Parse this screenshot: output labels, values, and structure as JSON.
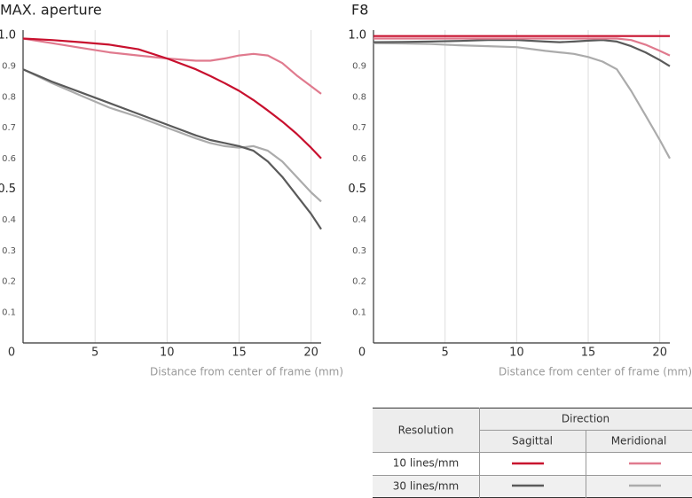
{
  "chart_data": [
    {
      "type": "line",
      "title": "MAX. aperture",
      "x_label": "Distance from center of frame (mm)",
      "x": [
        0,
        2,
        4,
        6,
        8,
        10,
        12,
        13,
        14,
        15,
        16,
        17,
        18,
        19,
        20,
        20.7
      ],
      "xlim": [
        0,
        20.7
      ],
      "xticks": [
        0,
        5,
        10,
        15,
        20
      ],
      "ylim": [
        0,
        1
      ],
      "yticks": [
        {
          "value": 1,
          "label": "1.0"
        },
        0.9,
        0.8,
        0.7,
        0.6,
        0.5,
        0.4,
        0.3,
        0.2,
        0.1
      ],
      "grid": true,
      "series": [
        {
          "color": "#c8102e",
          "values": [
            0.99,
            0.985,
            0.978,
            0.97,
            0.955,
            0.925,
            0.89,
            0.868,
            0.845,
            0.82,
            0.79,
            0.756,
            0.72,
            0.68,
            0.635,
            0.6
          ]
        },
        {
          "color": "#e07a8e",
          "values": [
            0.99,
            0.975,
            0.96,
            0.945,
            0.935,
            0.925,
            0.918,
            0.918,
            0.925,
            0.935,
            0.94,
            0.935,
            0.91,
            0.87,
            0.835,
            0.81
          ]
        },
        {
          "color": "#5a5a5a",
          "values": [
            0.89,
            0.85,
            0.815,
            0.78,
            0.745,
            0.71,
            0.675,
            0.66,
            0.65,
            0.64,
            0.625,
            0.59,
            0.54,
            0.48,
            0.42,
            0.37
          ]
        },
        {
          "color": "#ababab",
          "values": [
            0.89,
            0.845,
            0.805,
            0.765,
            0.735,
            0.7,
            0.665,
            0.65,
            0.64,
            0.635,
            0.64,
            0.625,
            0.59,
            0.54,
            0.49,
            0.46
          ]
        }
      ]
    },
    {
      "type": "line",
      "title": "F8",
      "x_label": "Distance from center of frame (mm)",
      "x": [
        0,
        2,
        4,
        6,
        8,
        10,
        12,
        13,
        14,
        15,
        16,
        17,
        18,
        19,
        20,
        20.7
      ],
      "xlim": [
        0,
        20.7
      ],
      "xticks": [
        0,
        5,
        10,
        15,
        20
      ],
      "ylim": [
        0,
        1
      ],
      "yticks": [
        {
          "value": 1,
          "label": "1.0"
        },
        0.9,
        0.8,
        0.7,
        0.6,
        0.5,
        0.4,
        0.3,
        0.2,
        0.1
      ],
      "grid": true,
      "series": [
        {
          "color": "#c8102e",
          "values": [
            0.998,
            0.998,
            0.998,
            0.998,
            0.998,
            0.998,
            0.998,
            0.998,
            0.998,
            0.998,
            0.998,
            0.998,
            0.998,
            0.998,
            0.998,
            0.998
          ]
        },
        {
          "color": "#e07a8e",
          "values": [
            0.99,
            0.99,
            0.99,
            0.99,
            0.99,
            0.99,
            0.99,
            0.99,
            0.99,
            0.99,
            0.99,
            0.99,
            0.985,
            0.97,
            0.95,
            0.935
          ]
        },
        {
          "color": "#5a5a5a",
          "values": [
            0.978,
            0.979,
            0.98,
            0.982,
            0.985,
            0.985,
            0.98,
            0.978,
            0.98,
            0.983,
            0.985,
            0.98,
            0.965,
            0.945,
            0.92,
            0.9
          ]
        },
        {
          "color": "#ababab",
          "values": [
            0.975,
            0.974,
            0.972,
            0.968,
            0.965,
            0.962,
            0.95,
            0.945,
            0.94,
            0.93,
            0.915,
            0.89,
            0.82,
            0.74,
            0.66,
            0.6
          ]
        }
      ]
    }
  ],
  "legend": {
    "resolution": "Resolution",
    "direction": "Direction",
    "columns": [
      "Sagittal",
      "Meridional"
    ],
    "rows": [
      "10 lines/mm",
      "30 lines/mm"
    ]
  }
}
